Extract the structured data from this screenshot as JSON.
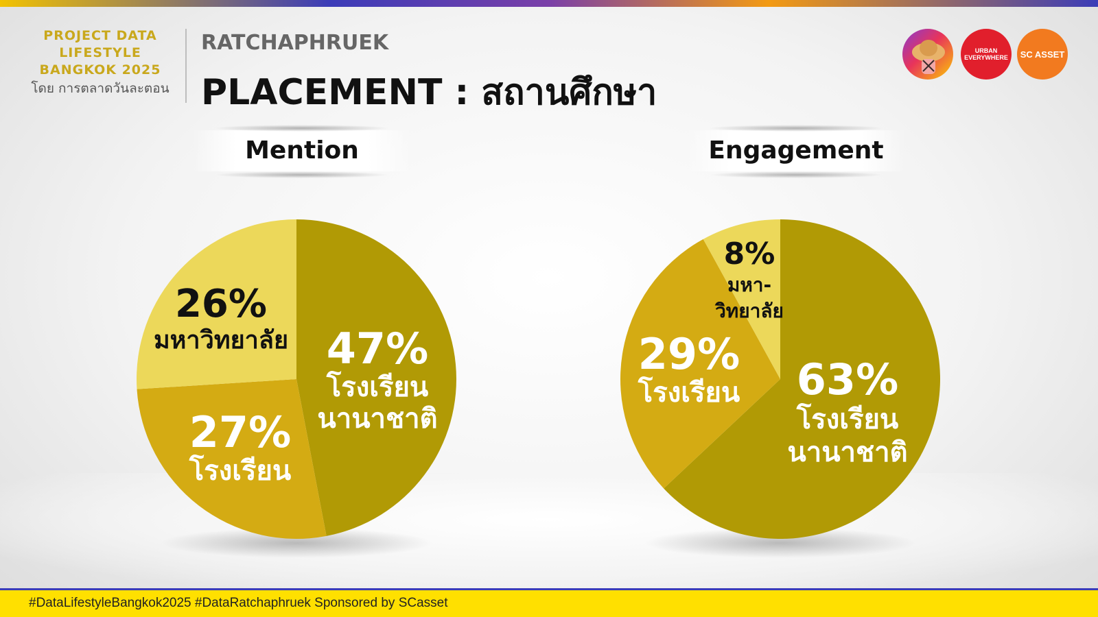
{
  "brand": {
    "line1": "PROJECT DATA",
    "line2": "LIFESTYLE",
    "line3": "BANGKOK 2025",
    "by": "โดย การตลาดวันละตอน"
  },
  "header": {
    "district": "RATCHAPHRUEK",
    "title": "PLACEMENT : สถานศึกษา"
  },
  "logos": {
    "logo2": "URBAN EVERYWHERE",
    "logo3": "SC ASSET"
  },
  "footer": {
    "hashtags": "#DataLifestyleBangkok2025 #DataRatchaphruek Sponsored by SCasset"
  },
  "colors": {
    "international": "#b19a05",
    "school": "#d4ab13",
    "university": "#ecd85a"
  },
  "chart_data": [
    {
      "type": "pie",
      "title": "Mention",
      "slices": [
        {
          "pct_label": "47%",
          "name_lines": [
            "โรงเรียน",
            "นานาชาติ"
          ],
          "value": 47,
          "color": "#b19a05",
          "text_color": "#ffffff"
        },
        {
          "pct_label": "27%",
          "name_lines": [
            "โรงเรียน"
          ],
          "value": 27,
          "color": "#d4ab13",
          "text_color": "#ffffff"
        },
        {
          "pct_label": "26%",
          "name_lines": [
            "มหาวิทยาลัย"
          ],
          "value": 26,
          "color": "#ecd85a",
          "text_color": "#111111"
        }
      ]
    },
    {
      "type": "pie",
      "title": "Engagement",
      "slices": [
        {
          "pct_label": "63%",
          "name_lines": [
            "โรงเรียน",
            "นานาชาติ"
          ],
          "value": 63,
          "color": "#b19a05",
          "text_color": "#ffffff"
        },
        {
          "pct_label": "29%",
          "name_lines": [
            "โรงเรียน"
          ],
          "value": 29,
          "color": "#d4ab13",
          "text_color": "#ffffff"
        },
        {
          "pct_label": "8%",
          "name_lines": [
            "มหา-",
            "วิทยาลัย"
          ],
          "value": 8,
          "color": "#ecd85a",
          "text_color": "#111111"
        }
      ]
    }
  ]
}
